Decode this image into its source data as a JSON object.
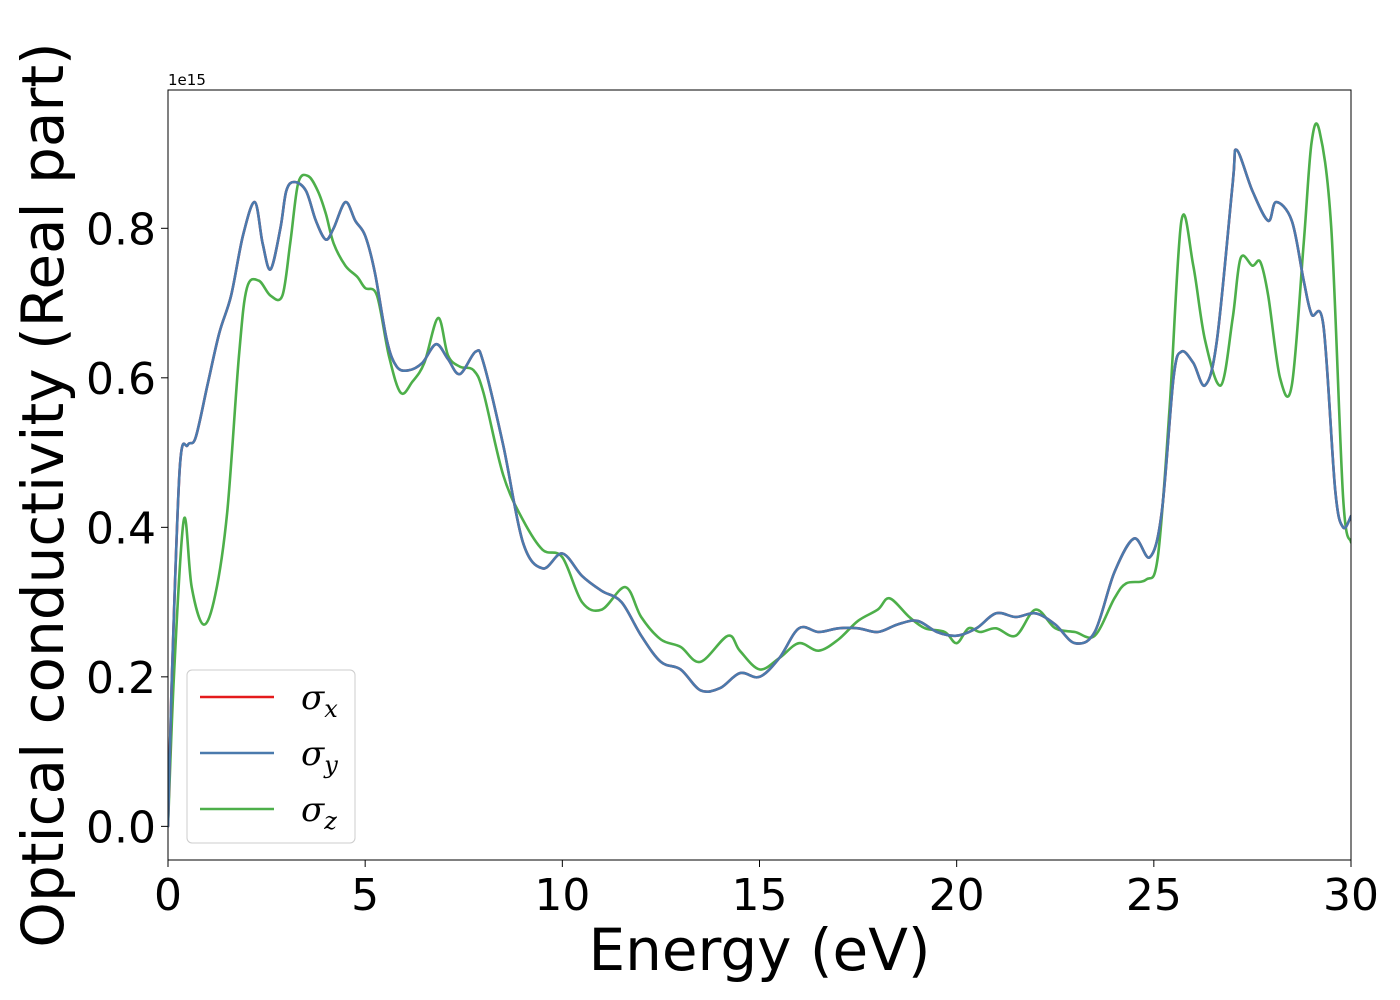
{
  "chart_data": {
    "type": "line",
    "xlabel": "Energy (eV)",
    "ylabel": "Optical conductivity (Real part)",
    "y_offset_text": "1e15",
    "xlim": [
      0,
      30
    ],
    "ylim": [
      -0.045,
      0.985
    ],
    "y_scale_factor": 1000000000000000.0,
    "x_ticks": [
      "0",
      "5",
      "10",
      "15",
      "20",
      "25",
      "30"
    ],
    "y_ticks": [
      "0.0",
      "0.2",
      "0.4",
      "0.6",
      "0.8"
    ],
    "grid": false,
    "legend_position": "lower-left",
    "colors": {
      "sigma_x": "#e41a1c",
      "sigma_y": "#4a7aad",
      "sigma_z": "#4daf4a"
    },
    "series": [
      {
        "name": "σx",
        "symbol": "σ",
        "sub": "x",
        "key": "sigma_x",
        "x": [
          0,
          0.1,
          0.3,
          0.5,
          0.7,
          1.0,
          1.3,
          1.6,
          1.9,
          2.2,
          2.4,
          2.6,
          2.85,
          3.0,
          3.2,
          3.5,
          3.75,
          4.0,
          4.2,
          4.5,
          4.75,
          5.0,
          5.25,
          5.55,
          5.8,
          6.1,
          6.45,
          6.8,
          7.1,
          7.4,
          7.8,
          8.0,
          8.5,
          9.0,
          9.5,
          10.0,
          10.5,
          11.0,
          11.5,
          12.0,
          12.5,
          13.0,
          13.5,
          14.0,
          14.5,
          15.0,
          15.5,
          16.0,
          16.5,
          17.0,
          17.5,
          18.0,
          18.5,
          19.0,
          19.5,
          20.0,
          20.5,
          21.0,
          21.5,
          22.0,
          22.5,
          23.0,
          23.5,
          24.0,
          24.5,
          24.9,
          25.2,
          25.5,
          25.7,
          26.0,
          26.3,
          26.6,
          27.0,
          27.1,
          27.5,
          27.9,
          28.1,
          28.5,
          28.8,
          29.0,
          29.3,
          29.6,
          29.8,
          30.0
        ],
        "y": [
          0,
          0.2,
          0.48,
          0.51,
          0.52,
          0.59,
          0.66,
          0.71,
          0.79,
          0.835,
          0.78,
          0.745,
          0.8,
          0.85,
          0.862,
          0.85,
          0.81,
          0.785,
          0.8,
          0.835,
          0.81,
          0.79,
          0.74,
          0.65,
          0.615,
          0.61,
          0.62,
          0.645,
          0.625,
          0.605,
          0.635,
          0.62,
          0.51,
          0.38,
          0.345,
          0.365,
          0.335,
          0.315,
          0.3,
          0.255,
          0.22,
          0.21,
          0.182,
          0.185,
          0.205,
          0.2,
          0.225,
          0.265,
          0.26,
          0.265,
          0.265,
          0.26,
          0.27,
          0.275,
          0.26,
          0.255,
          0.265,
          0.285,
          0.28,
          0.285,
          0.27,
          0.245,
          0.26,
          0.34,
          0.385,
          0.36,
          0.42,
          0.6,
          0.635,
          0.62,
          0.59,
          0.65,
          0.86,
          0.905,
          0.85,
          0.81,
          0.835,
          0.81,
          0.73,
          0.685,
          0.67,
          0.45,
          0.4,
          0.415
        ]
      },
      {
        "name": "σy",
        "symbol": "σ",
        "sub": "y",
        "key": "sigma_y",
        "x": [
          0,
          0.1,
          0.3,
          0.5,
          0.7,
          1.0,
          1.3,
          1.6,
          1.9,
          2.2,
          2.4,
          2.6,
          2.85,
          3.0,
          3.2,
          3.5,
          3.75,
          4.0,
          4.2,
          4.5,
          4.75,
          5.0,
          5.25,
          5.55,
          5.8,
          6.1,
          6.45,
          6.8,
          7.1,
          7.4,
          7.8,
          8.0,
          8.5,
          9.0,
          9.5,
          10.0,
          10.5,
          11.0,
          11.5,
          12.0,
          12.5,
          13.0,
          13.5,
          14.0,
          14.5,
          15.0,
          15.5,
          16.0,
          16.5,
          17.0,
          17.5,
          18.0,
          18.5,
          19.0,
          19.5,
          20.0,
          20.5,
          21.0,
          21.5,
          22.0,
          22.5,
          23.0,
          23.5,
          24.0,
          24.5,
          24.9,
          25.2,
          25.5,
          25.7,
          26.0,
          26.3,
          26.6,
          27.0,
          27.1,
          27.5,
          27.9,
          28.1,
          28.5,
          28.8,
          29.0,
          29.3,
          29.6,
          29.8,
          30.0
        ],
        "y": [
          0,
          0.2,
          0.48,
          0.51,
          0.52,
          0.59,
          0.66,
          0.71,
          0.79,
          0.835,
          0.78,
          0.745,
          0.8,
          0.85,
          0.862,
          0.85,
          0.81,
          0.785,
          0.8,
          0.835,
          0.81,
          0.79,
          0.74,
          0.65,
          0.615,
          0.61,
          0.62,
          0.645,
          0.625,
          0.605,
          0.635,
          0.62,
          0.51,
          0.38,
          0.345,
          0.365,
          0.335,
          0.315,
          0.3,
          0.255,
          0.22,
          0.21,
          0.182,
          0.185,
          0.205,
          0.2,
          0.225,
          0.265,
          0.26,
          0.265,
          0.265,
          0.26,
          0.27,
          0.275,
          0.26,
          0.255,
          0.265,
          0.285,
          0.28,
          0.285,
          0.27,
          0.245,
          0.26,
          0.34,
          0.385,
          0.36,
          0.42,
          0.6,
          0.635,
          0.62,
          0.59,
          0.65,
          0.86,
          0.905,
          0.85,
          0.81,
          0.835,
          0.81,
          0.73,
          0.685,
          0.67,
          0.45,
          0.4,
          0.415
        ]
      },
      {
        "name": "σz",
        "symbol": "σ",
        "sub": "z",
        "key": "sigma_z",
        "x": [
          0,
          0.15,
          0.4,
          0.6,
          0.9,
          1.2,
          1.5,
          1.8,
          2.0,
          2.3,
          2.6,
          2.9,
          3.1,
          3.3,
          3.55,
          3.8,
          4.0,
          4.2,
          4.5,
          4.8,
          5.0,
          5.3,
          5.6,
          5.9,
          6.2,
          6.5,
          6.85,
          7.1,
          7.4,
          7.75,
          8.0,
          8.5,
          9.0,
          9.5,
          10.0,
          10.5,
          11.0,
          11.6,
          12.0,
          12.5,
          13.0,
          13.5,
          14.2,
          14.5,
          15.0,
          15.5,
          16.0,
          16.5,
          17.0,
          17.5,
          18.0,
          18.3,
          18.8,
          19.2,
          19.7,
          20.0,
          20.3,
          20.6,
          21.0,
          21.5,
          22.0,
          22.5,
          23.0,
          23.5,
          24.0,
          24.3,
          24.8,
          25.1,
          25.4,
          25.7,
          26.0,
          26.3,
          26.7,
          27.0,
          27.2,
          27.5,
          27.7,
          27.9,
          28.2,
          28.5,
          28.8,
          29.0,
          29.2,
          29.5,
          29.8,
          30.0
        ],
        "y": [
          0,
          0.2,
          0.41,
          0.32,
          0.27,
          0.31,
          0.42,
          0.63,
          0.72,
          0.73,
          0.71,
          0.71,
          0.78,
          0.86,
          0.87,
          0.85,
          0.82,
          0.78,
          0.75,
          0.735,
          0.72,
          0.71,
          0.63,
          0.58,
          0.595,
          0.62,
          0.68,
          0.63,
          0.615,
          0.61,
          0.58,
          0.47,
          0.41,
          0.37,
          0.36,
          0.3,
          0.29,
          0.32,
          0.28,
          0.25,
          0.24,
          0.22,
          0.255,
          0.235,
          0.21,
          0.225,
          0.245,
          0.235,
          0.25,
          0.275,
          0.29,
          0.305,
          0.28,
          0.265,
          0.26,
          0.245,
          0.265,
          0.26,
          0.265,
          0.255,
          0.29,
          0.265,
          0.26,
          0.255,
          0.305,
          0.325,
          0.33,
          0.36,
          0.56,
          0.81,
          0.75,
          0.65,
          0.59,
          0.68,
          0.76,
          0.75,
          0.755,
          0.71,
          0.6,
          0.59,
          0.78,
          0.915,
          0.93,
          0.8,
          0.44,
          0.38
        ]
      }
    ]
  }
}
